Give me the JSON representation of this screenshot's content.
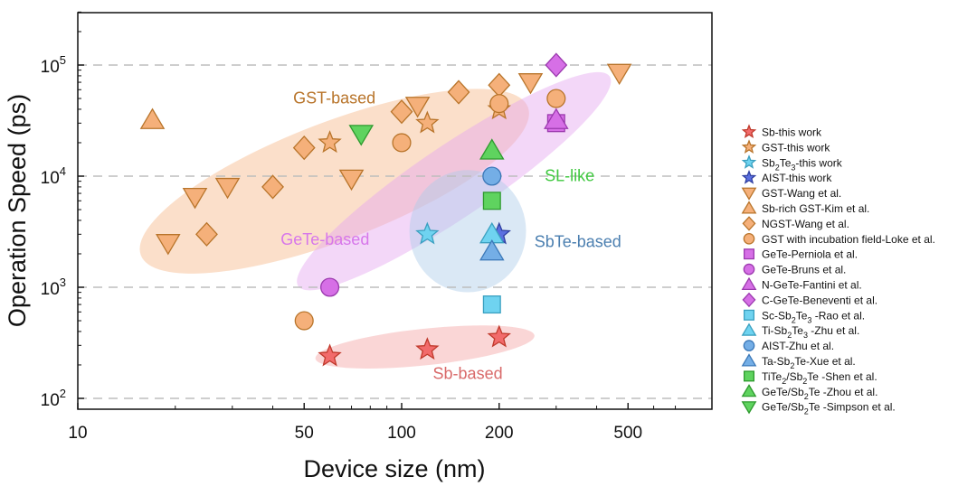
{
  "chart_data": {
    "type": "scatter",
    "xscale": "log",
    "yscale": "log",
    "xlim": [
      10,
      800
    ],
    "ylim": [
      80,
      300000
    ],
    "xlabel": "Device size (nm)",
    "ylabel": "Operation Speed (ps)",
    "grid": "horizontal dashed at each decade",
    "x_ticks": [
      {
        "value": 10,
        "label": "10"
      },
      {
        "value": 50,
        "label": "50"
      },
      {
        "value": 100,
        "label": "100"
      },
      {
        "value": 200,
        "label": "200"
      },
      {
        "value": 500,
        "label": "500"
      }
    ],
    "y_ticks": [
      {
        "value": 100,
        "base": "10",
        "exp": "2"
      },
      {
        "value": 1000,
        "base": "10",
        "exp": "3"
      },
      {
        "value": 10000,
        "base": "10",
        "exp": "4"
      },
      {
        "value": 100000,
        "base": "10",
        "exp": "5"
      }
    ],
    "regions": [
      {
        "label": "GST-based",
        "color": "#f7b98a",
        "text_color": "#b8742a",
        "cx": 62,
        "cy": 9000,
        "rx_dec": 0.64,
        "ry_dec": 1.06,
        "rot": -21
      },
      {
        "label": "GeTe-based",
        "color": "#e5a6f0",
        "text_color": "#d777ea",
        "cx": 145,
        "cy": 9000,
        "rx_dec": 0.58,
        "ry_dec": 0.65,
        "rot": -34
      },
      {
        "label": "SbTe-based",
        "color": "#aecbe8",
        "text_color": "#4b7fb0",
        "cx": 160,
        "cy": 3200,
        "rx_dec": 0.18,
        "ry_dec": 1.1,
        "rot": 0
      },
      {
        "label": "Sb-based",
        "color": "#f3a3a3",
        "text_color": "#d96a6a",
        "cx": 118,
        "cy": 290,
        "rx_dec": 0.34,
        "ry_dec": 0.33,
        "rot": -6
      }
    ],
    "region_labels": [
      {
        "text": "GST-based",
        "x": 62,
        "y": 45000,
        "color": "#b8742a"
      },
      {
        "text": "SL-like",
        "x": 330,
        "y": 9000,
        "color": "#3ec83e"
      },
      {
        "text": "GeTe-based",
        "x": 58,
        "y": 2400,
        "color": "#d777ea"
      },
      {
        "text": "SbTe-based",
        "x": 350,
        "y": 2300,
        "color": "#4b7fb0"
      },
      {
        "text": "Sb-based",
        "x": 160,
        "y": 150,
        "color": "#d96a6a"
      }
    ],
    "series": [
      {
        "name": "Sb-this work",
        "marker": "star",
        "color": "#f26b6b",
        "edge": "#c0392b",
        "points": [
          [
            60,
            240
          ],
          [
            120,
            275
          ],
          [
            200,
            355
          ]
        ]
      },
      {
        "name": "GST-this work",
        "marker": "star",
        "color": "#f5b07a",
        "edge": "#b8742a",
        "points": [
          [
            60,
            20000
          ],
          [
            120,
            30000
          ],
          [
            200,
            40000
          ]
        ]
      },
      {
        "name": "Sb2Te3-this work",
        "marker": "star",
        "color": "#6fd3f0",
        "edge": "#3aa0c0",
        "points": [
          [
            120,
            3000
          ]
        ]
      },
      {
        "name": "AIST-this work",
        "marker": "star",
        "color": "#5b6fe0",
        "edge": "#2f3fa0",
        "points": [
          [
            200,
            3000
          ]
        ]
      },
      {
        "name": "GST-Wang et al.",
        "marker": "triangle-down",
        "color": "#f5b07a",
        "edge": "#b8742a",
        "points": [
          [
            19,
            2500
          ],
          [
            23,
            6500
          ],
          [
            29,
            8000
          ],
          [
            70,
            9500
          ],
          [
            112,
            43000
          ],
          [
            250,
            70000
          ],
          [
            470,
            85000
          ]
        ]
      },
      {
        "name": "Sb-rich GST-Kim et al.",
        "marker": "triangle-up",
        "color": "#f5b07a",
        "edge": "#b8742a",
        "points": [
          [
            17,
            32000
          ]
        ]
      },
      {
        "name": "NGST-Wang et al.",
        "marker": "diamond",
        "color": "#f5b07a",
        "edge": "#b8742a",
        "points": [
          [
            25,
            3000
          ],
          [
            40,
            8000
          ],
          [
            50,
            18000
          ],
          [
            100,
            38000
          ],
          [
            150,
            57000
          ],
          [
            200,
            66000
          ]
        ]
      },
      {
        "name": "GST with incubation field-Loke et al.",
        "marker": "circle",
        "color": "#f5b07a",
        "edge": "#b8742a",
        "points": [
          [
            50,
            500
          ],
          [
            100,
            20000
          ],
          [
            200,
            45000
          ],
          [
            300,
            50000
          ]
        ]
      },
      {
        "name": "GeTe-Perniola et al.",
        "marker": "square",
        "color": "#d66fe6",
        "edge": "#9b3aae",
        "points": [
          [
            300,
            30000
          ]
        ]
      },
      {
        "name": "GeTe-Bruns et al.",
        "marker": "circle",
        "color": "#d66fe6",
        "edge": "#9b3aae",
        "points": [
          [
            60,
            1000
          ]
        ]
      },
      {
        "name": "N-GeTe-Fantini et al.",
        "marker": "triangle-up",
        "color": "#d66fe6",
        "edge": "#9b3aae",
        "points": [
          [
            300,
            32000
          ]
        ]
      },
      {
        "name": "C-GeTe-Beneventi et al.",
        "marker": "diamond",
        "color": "#d66fe6",
        "edge": "#9b3aae",
        "points": [
          [
            300,
            100000
          ]
        ]
      },
      {
        "name": "Sc-Sb2Te3-Rao et al.",
        "marker": "square",
        "color": "#6fd3f0",
        "edge": "#3aa0c0",
        "points": [
          [
            190,
            700
          ]
        ]
      },
      {
        "name": "Ti-Sb2Te3-Zhu et al.",
        "marker": "triangle-up",
        "color": "#6fd3f0",
        "edge": "#3aa0c0",
        "points": [
          [
            190,
            3000
          ]
        ]
      },
      {
        "name": "AIST-Zhu et al.",
        "marker": "circle",
        "color": "#74aee6",
        "edge": "#3b78b8",
        "points": [
          [
            190,
            10000
          ]
        ]
      },
      {
        "name": "Ta-Sb2Te-Xue et al.",
        "marker": "triangle-up",
        "color": "#74aee6",
        "edge": "#3b78b8",
        "points": [
          [
            190,
            2100
          ]
        ]
      },
      {
        "name": "TiTe2/Sb2Te3-Shen et al.",
        "marker": "square",
        "color": "#5fd35f",
        "edge": "#2e9a2e",
        "points": [
          [
            190,
            6000
          ]
        ]
      },
      {
        "name": "GeTe/Sb2Te3-Zhou et al.",
        "marker": "triangle-up",
        "color": "#5fd35f",
        "edge": "#2e9a2e",
        "points": [
          [
            190,
            17000
          ]
        ]
      },
      {
        "name": "GeTe/Sb2Te3-Simpson et al.",
        "marker": "triangle-down",
        "color": "#5fd35f",
        "edge": "#2e9a2e",
        "points": [
          [
            75,
            24000
          ]
        ]
      }
    ],
    "legend": {
      "placement": "right",
      "entries": [
        {
          "marker": "star",
          "color": "#f26b6b",
          "edge": "#c0392b",
          "text": "Sb-this work"
        },
        {
          "marker": "star",
          "color": "#f5b07a",
          "edge": "#b8742a",
          "text": "GST-this work"
        },
        {
          "marker": "star",
          "color": "#6fd3f0",
          "edge": "#3aa0c0",
          "text": "Sb",
          "sub1": "2",
          "mid": "Te",
          "sub2": "3",
          "tail": "-this work"
        },
        {
          "marker": "star",
          "color": "#5b6fe0",
          "edge": "#2f3fa0",
          "text": "AIST-this work"
        },
        {
          "marker": "triangle-down",
          "color": "#f5b07a",
          "edge": "#b8742a",
          "text": "GST-Wang et al."
        },
        {
          "marker": "triangle-up",
          "color": "#f5b07a",
          "edge": "#b8742a",
          "text": "Sb-rich GST-Kim et al."
        },
        {
          "marker": "diamond",
          "color": "#f5b07a",
          "edge": "#b8742a",
          "text": "NGST-Wang et al."
        },
        {
          "marker": "circle",
          "color": "#f5b07a",
          "edge": "#b8742a",
          "text": "GST with incubation field-Loke et al."
        },
        {
          "marker": "square",
          "color": "#d66fe6",
          "edge": "#9b3aae",
          "text": "GeTe-Perniola et al."
        },
        {
          "marker": "circle",
          "color": "#d66fe6",
          "edge": "#9b3aae",
          "text": "GeTe-Bruns et al."
        },
        {
          "marker": "triangle-up",
          "color": "#d66fe6",
          "edge": "#9b3aae",
          "text": "N-GeTe-Fantini et al."
        },
        {
          "marker": "diamond",
          "color": "#d66fe6",
          "edge": "#9b3aae",
          "text": "C-GeTe-Beneventi et al."
        },
        {
          "marker": "square",
          "color": "#6fd3f0",
          "edge": "#3aa0c0",
          "text": "Sc-Sb",
          "sub1": "2",
          "mid": "Te",
          "sub2": "3",
          "tail": " -Rao et al."
        },
        {
          "marker": "triangle-up",
          "color": "#6fd3f0",
          "edge": "#3aa0c0",
          "text": "Ti-Sb",
          "sub1": "2",
          "mid": "Te",
          "sub2": "3",
          "tail": " -Zhu et al."
        },
        {
          "marker": "circle",
          "color": "#74aee6",
          "edge": "#3b78b8",
          "text": "AIST-Zhu et al."
        },
        {
          "marker": "triangle-up",
          "color": "#74aee6",
          "edge": "#3b78b8",
          "text": "Ta-Sb",
          "sub1": "2",
          "mid": "Te-Xue et al."
        },
        {
          "marker": "square",
          "color": "#5fd35f",
          "edge": "#2e9a2e",
          "text": "TiTe",
          "sub1": "2",
          "mid": "/Sb",
          "sub2": "2",
          "tail": "Te -Shen et al."
        },
        {
          "marker": "triangle-up",
          "color": "#5fd35f",
          "edge": "#2e9a2e",
          "text": "GeTe/Sb",
          "sub1": "2",
          "mid": "Te -Zhou et al."
        },
        {
          "marker": "triangle-down",
          "color": "#5fd35f",
          "edge": "#2e9a2e",
          "text": "GeTe/Sb",
          "sub1": "2",
          "mid": "Te -Simpson et al."
        }
      ]
    }
  }
}
